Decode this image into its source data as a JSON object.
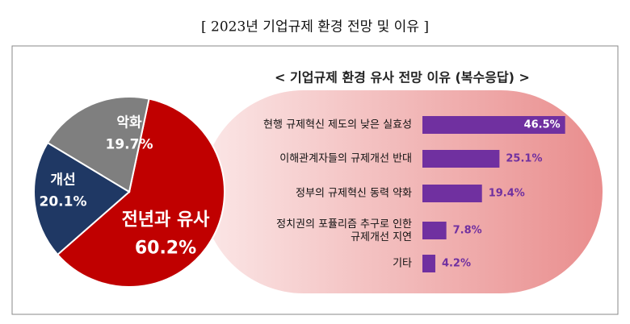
{
  "title": "[ 2023년 기업규제 환경 전망 및 이유 ]",
  "chart_data": [
    {
      "type": "pie",
      "categories": [
        "전년과 유사",
        "개선",
        "악화"
      ],
      "values": [
        60.2,
        20.1,
        19.7
      ],
      "value_labels": [
        "60.2%",
        "20.1%",
        "19.7%"
      ],
      "colors": [
        "#c00000",
        "#1f3864",
        "#7f7f7f"
      ]
    },
    {
      "type": "hbar",
      "title": "< 기업규제 환경 유사 전망 이유 (복수응답) >",
      "categories": [
        "현행 규제혁신 제도의 낮은 실효성",
        "이해관계자들의 규제개선 반대",
        "정부의 규제혁신 동력 약화",
        "정치권의 포퓰리즘 추구로 인한\n규제개선 지연",
        "기타"
      ],
      "values": [
        46.5,
        25.1,
        19.4,
        7.8,
        4.2
      ],
      "value_labels": [
        "46.5%",
        "25.1%",
        "19.4%",
        "7.8%",
        "4.2%"
      ],
      "color": "#7030a0"
    }
  ]
}
